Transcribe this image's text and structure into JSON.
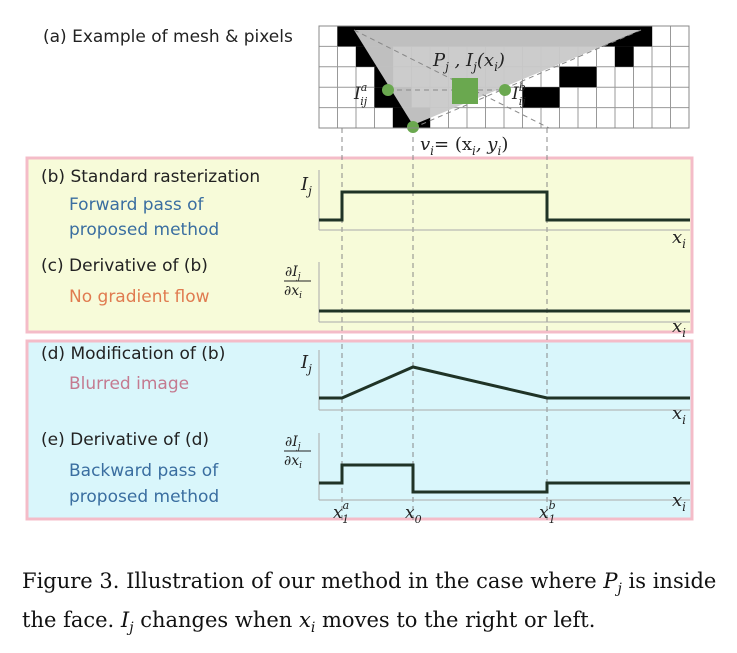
{
  "panels": {
    "a": {
      "title": "(a) Example of mesh & pixels"
    },
    "b": {
      "title": "(b) Standard rasterization",
      "subtitle_line1": "Forward pass of",
      "subtitle_line2": "proposed method"
    },
    "c": {
      "title": "(c) Derivative of (b)",
      "subtitle": "No gradient flow"
    },
    "d": {
      "title": "(d) Modification of (b)",
      "subtitle": "Blurred image"
    },
    "e": {
      "title": "(e) Derivative of (d)",
      "subtitle_line1": "Backward pass of",
      "subtitle_line2": "proposed method"
    }
  },
  "math": {
    "pixel_label": "P",
    "pixel_sub": "j",
    "intensity_label": "I",
    "intensity_sub": "j",
    "intensity_arg": "(x",
    "intensity_arg_sub": "i",
    "intensity_arg_close": ")",
    "ia_label": "I",
    "ia_sup": "a",
    "ia_sub": "ij",
    "ib_label": "I",
    "ib_sup": "b",
    "ib_sub": "ij",
    "vertex_eq": "v",
    "vertex_sub": "i",
    "vertex_rhs": "= (x",
    "vertex_rhs_sub1": "i",
    "vertex_comma": ", y",
    "vertex_rhs_sub2": "i",
    "vertex_close": ")",
    "y_axis_I": "I",
    "y_axis_I_sub": "j",
    "deriv_num": "∂I",
    "deriv_num_sub": "j",
    "deriv_den": "∂x",
    "deriv_den_sub": "i",
    "x_axis": "x",
    "x_axis_sub": "i",
    "x1a": "x",
    "x1a_sub": "1",
    "x1a_sup": "a",
    "x0": "x",
    "x0_sub": "0",
    "x1b": "x",
    "x1b_sub": "1",
    "x1b_sup": "b"
  },
  "caption": {
    "prefix": "Figure 3. Illustration of our method in the case where ",
    "p": "P",
    "p_sub": "j",
    "mid": " is inside the face. ",
    "i": "I",
    "i_sub": "j",
    "mid2": " changes when ",
    "x": "x",
    "x_sub": "i",
    "suffix": " moves to the right or left."
  },
  "colors": {
    "panel_bc_bg": "#f7fbd9",
    "panel_de_bg": "#d9f6fb",
    "panel_border": "#f4bcc8",
    "triangle": "#c9c9c9",
    "green": "#6aa84f",
    "signal": "#1f3326"
  }
}
